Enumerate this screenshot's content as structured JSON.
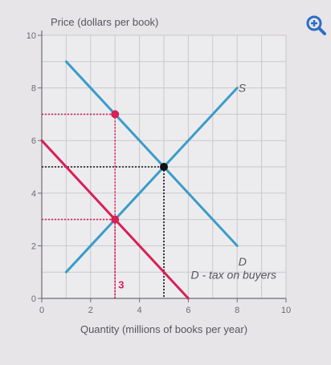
{
  "chart_data": {
    "type": "line",
    "ylabel": "Price (dollars per book)",
    "xlabel": "Quantity (millions of books per year)",
    "xlim": [
      0,
      10
    ],
    "ylim": [
      0,
      10
    ],
    "x_ticks": [
      "0",
      "2",
      "4",
      "6",
      "8",
      "10"
    ],
    "y_ticks": [
      "0",
      "2",
      "4",
      "6",
      "8",
      "10"
    ],
    "grid": true,
    "series": [
      {
        "name": "S",
        "color": "#3a9cc9",
        "points": [
          [
            1,
            1
          ],
          [
            8,
            8
          ]
        ]
      },
      {
        "name": "D",
        "color": "#3a9cc9",
        "points": [
          [
            1,
            9
          ],
          [
            8,
            2
          ]
        ]
      },
      {
        "name": "D - tax on buyers",
        "color": "#d81f57",
        "points": [
          [
            0,
            6
          ],
          [
            6,
            0
          ]
        ]
      }
    ],
    "points": [
      {
        "x": 5,
        "y": 5,
        "color": "#111111"
      },
      {
        "x": 3,
        "y": 7,
        "color": "#d81f57"
      },
      {
        "x": 3,
        "y": 3,
        "color": "#d81f57"
      }
    ],
    "guides": [
      {
        "x": 5,
        "y": 5,
        "color": "#111111"
      },
      {
        "x": 3,
        "y": 7,
        "color": "#d81f57"
      },
      {
        "x": 3,
        "y": 3,
        "color": "#d81f57"
      }
    ],
    "annotations": [
      {
        "text": "3",
        "x": 3,
        "y": 0.5,
        "color": "#d81f57"
      }
    ]
  },
  "icons": {
    "zoom": "zoom-in-icon"
  }
}
